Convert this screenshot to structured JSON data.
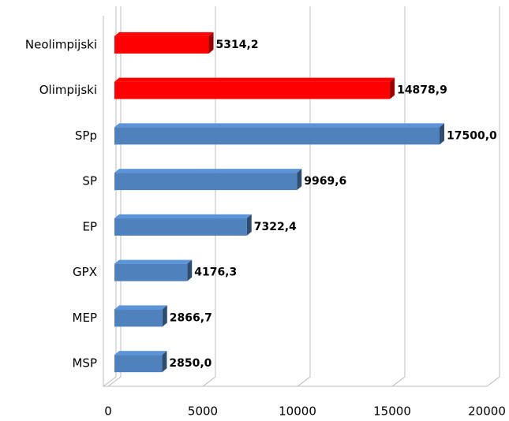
{
  "chart_data": {
    "type": "bar",
    "orientation": "horizontal",
    "categories": [
      "Neolimpijski",
      "Olimpijski",
      "SPp",
      "SP",
      "EP",
      "GPX",
      "MEP",
      "MSP"
    ],
    "values": [
      5314.2,
      14878.9,
      17500.0,
      9969.6,
      7322.4,
      4176.3,
      2866.7,
      2850.0
    ],
    "value_labels": [
      "5314,2",
      "14878,9",
      "17500,0",
      "9969,6",
      "7322,4",
      "4176,3",
      "2866,7",
      "2850,0"
    ],
    "colors": [
      "#ff0000",
      "#ff0000",
      "#4f81bd",
      "#4f81bd",
      "#4f81bd",
      "#4f81bd",
      "#4f81bd",
      "#4f81bd"
    ],
    "xlim": [
      0,
      20000
    ],
    "xticks": [
      0,
      5000,
      10000,
      15000,
      20000
    ],
    "grid": true
  }
}
